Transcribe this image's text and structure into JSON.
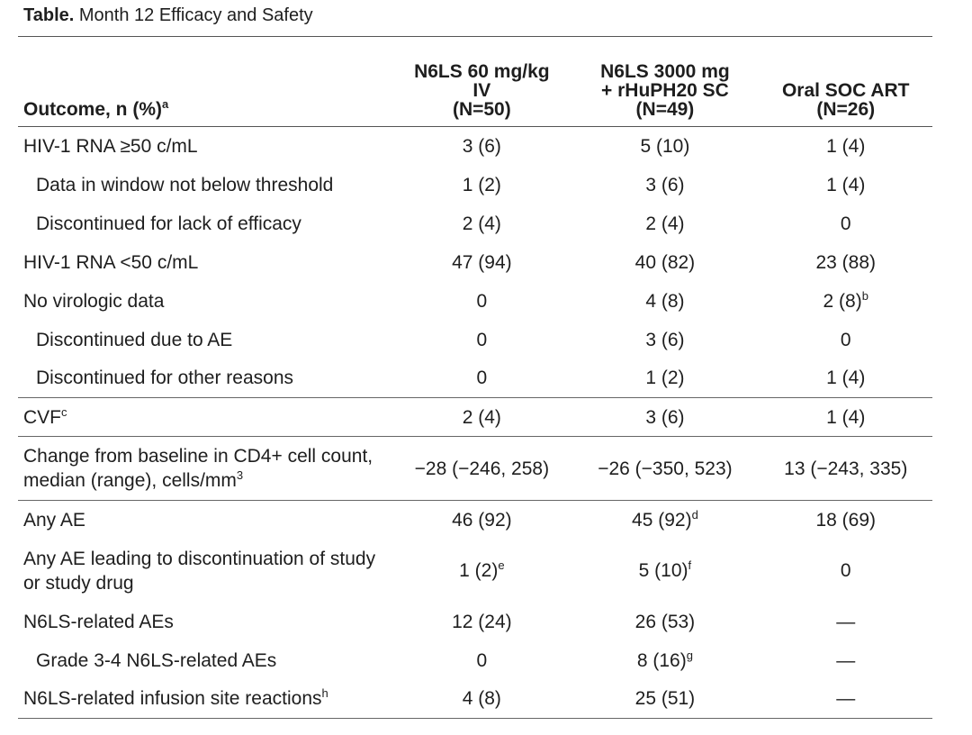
{
  "title": {
    "label": "Table.",
    "text": " Month 12 Efficacy and Safety"
  },
  "table": {
    "header": [
      {
        "lines": [
          "Outcome, n (%)"
        ],
        "sup": "a"
      },
      {
        "lines": [
          "N6LS 60 mg/kg",
          "IV",
          "(N=50)"
        ]
      },
      {
        "lines": [
          "N6LS 3000 mg",
          "+ rHuPH20 SC",
          "(N=49)"
        ]
      },
      {
        "lines": [
          "Oral SOC ART",
          "(N=26)"
        ]
      }
    ],
    "groups": [
      {
        "rows": [
          {
            "label": "HIV-1 RNA ≥50 c/mL",
            "cells": [
              "3 (6)",
              "5 (10)",
              "1 (4)"
            ]
          },
          {
            "label": "Data in window not below threshold",
            "indent": true,
            "cells": [
              "1 (2)",
              "3 (6)",
              "1 (4)"
            ]
          },
          {
            "label": "Discontinued for lack of efficacy",
            "indent": true,
            "cells": [
              "2 (4)",
              "2 (4)",
              "0"
            ]
          },
          {
            "label": "HIV-1 RNA <50 c/mL",
            "cells": [
              "47 (94)",
              "40 (82)",
              "23 (88)"
            ]
          },
          {
            "label": "No virologic data",
            "cells": [
              "0",
              "4 (8)",
              {
                "text": "2 (8)",
                "sup": "b"
              }
            ]
          },
          {
            "label": "Discontinued due to AE",
            "indent": true,
            "cells": [
              "0",
              "3 (6)",
              "0"
            ]
          },
          {
            "label": "Discontinued for other reasons",
            "indent": true,
            "cells": [
              "0",
              "1 (2)",
              "1 (4)"
            ]
          }
        ]
      },
      {
        "rows": [
          {
            "label": {
              "text": "CVF",
              "sup": "c"
            },
            "cells": [
              "2 (4)",
              "3 (6)",
              "1 (4)"
            ]
          }
        ]
      },
      {
        "rows": [
          {
            "label": {
              "text": "Change from baseline in CD4+ cell count, median (range), cells/mm",
              "sup": "3"
            },
            "cells": [
              "−28 (−246, 258)",
              "−26 (−350, 523)",
              "13 (−243, 335)"
            ]
          }
        ]
      },
      {
        "rows": [
          {
            "label": "Any AE",
            "cells": [
              "46 (92)",
              {
                "text": "45 (92)",
                "sup": "d"
              },
              "18 (69)"
            ]
          },
          {
            "label": "Any AE leading to discontinuation of study or study drug",
            "cells": [
              {
                "text": "1 (2)",
                "sup": "e"
              },
              {
                "text": "5 (10)",
                "sup": "f"
              },
              "0"
            ]
          },
          {
            "label": "N6LS-related AEs",
            "cells": [
              "12 (24)",
              "26 (53)",
              "—"
            ]
          },
          {
            "label": "Grade 3-4 N6LS-related AEs",
            "indent": true,
            "cells": [
              "0",
              {
                "text": "8 (16)",
                "sup": "g"
              },
              "—"
            ]
          },
          {
            "label": {
              "text": "N6LS-related infusion site reactions",
              "sup": "h"
            },
            "cells": [
              "4 (8)",
              "25 (51)",
              "—"
            ]
          }
        ]
      }
    ]
  }
}
